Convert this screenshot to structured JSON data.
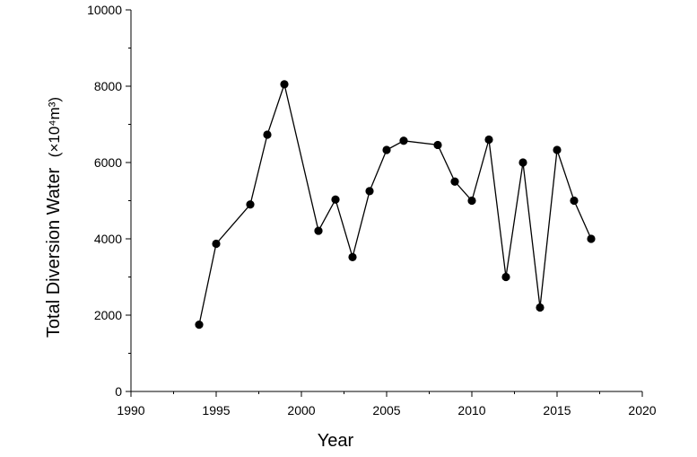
{
  "chart_data": {
    "type": "line",
    "xlabel": "Year",
    "ylabel": "Total Diversion Water",
    "ylabel_unit": "(×10⁴m³)",
    "xlim": [
      1990,
      2020
    ],
    "ylim": [
      0,
      10000
    ],
    "x_ticks": [
      "1990",
      "1995",
      "2000",
      "2005",
      "2010",
      "2015",
      "2020"
    ],
    "y_ticks": [
      "0",
      "2000",
      "4000",
      "6000",
      "8000",
      "10000"
    ],
    "x_tick_values": [
      1990,
      1995,
      2000,
      2005,
      2010,
      2015,
      2020
    ],
    "y_tick_values": [
      0,
      2000,
      4000,
      6000,
      8000,
      10000
    ],
    "grid": false,
    "marker": "circle-filled",
    "line_color": "#000000",
    "series": [
      {
        "x": [
          1994,
          1995,
          1997,
          1998,
          1999,
          2001,
          2002,
          2003,
          2004,
          2005,
          2006,
          2008,
          2009,
          2010,
          2011,
          2012,
          2013,
          2014,
          2015,
          2016,
          2017
        ],
        "y": [
          1750,
          3870,
          4900,
          6730,
          8050,
          4210,
          5030,
          3520,
          5250,
          6330,
          6570,
          6460,
          5500,
          5000,
          6600,
          3000,
          6000,
          2200,
          6330,
          5000,
          4000
        ]
      }
    ]
  }
}
